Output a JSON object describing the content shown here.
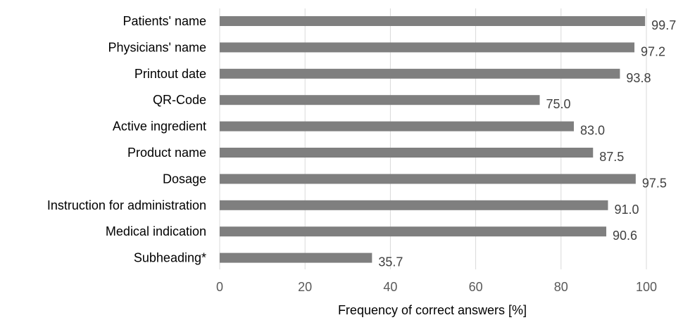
{
  "chart_data": {
    "type": "bar",
    "orientation": "horizontal",
    "categories": [
      "Patients' name",
      "Physicians' name",
      "Printout date",
      "QR-Code",
      "Active ingredient",
      "Product name",
      "Dosage",
      "Instruction for administration",
      "Medical indication",
      "Subheading*"
    ],
    "values": [
      99.7,
      97.2,
      93.8,
      75.0,
      83.0,
      87.5,
      97.5,
      91.0,
      90.6,
      35.7
    ],
    "value_labels": [
      "99.7",
      "97.2",
      "93.8",
      "75.0",
      "83.0",
      "87.5",
      "97.5",
      "91.0",
      "90.6",
      "35.7"
    ],
    "xlabel": "Frequency of correct answers [%]",
    "xlim": [
      0,
      100
    ],
    "xticks": [
      "0",
      "20",
      "40",
      "60",
      "80",
      "100"
    ],
    "grid": "vertical",
    "bar_color": "#7f7f7f"
  }
}
